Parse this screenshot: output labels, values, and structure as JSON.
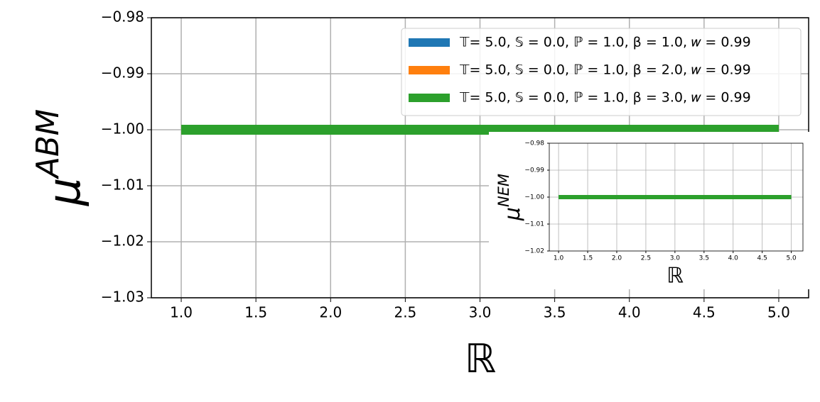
{
  "chart_data": [
    {
      "type": "line",
      "x_label": "ℝ",
      "y_label": "μ",
      "y_label_sup": "ABM",
      "x": [
        1,
        2,
        3,
        4,
        5
      ],
      "series": [
        {
          "name": "𝕋= 5.0, 𝕊 = 0.0, ℙ = 1.0, β = 1.0, 𝑤 = 0.99",
          "color": "#1f77b4",
          "values": [
            -1,
            -1,
            -1,
            -1,
            -1
          ]
        },
        {
          "name": "𝕋= 5.0, 𝕊 = 0.0, ℙ = 1.0, β = 2.0, 𝑤 = 0.99",
          "color": "#ff7f0e",
          "values": [
            -1,
            -1,
            -1,
            -1,
            -1
          ]
        },
        {
          "name": "𝕋= 5.0, 𝕊 = 0.0, ℙ = 1.0, β = 3.0, 𝑤 = 0.99",
          "color": "#2ca02c",
          "values": [
            -1,
            -1,
            -1,
            -1,
            -1
          ]
        }
      ],
      "xlim": [
        0.8,
        5.2
      ],
      "xticks": [
        {
          "value": 1,
          "label": "1.0"
        },
        1.5,
        {
          "value": 2,
          "label": "2.0"
        },
        2.5,
        {
          "value": 3,
          "label": "3.0"
        },
        3.5,
        {
          "value": 4,
          "label": "4.0"
        },
        4.5,
        {
          "value": 5,
          "label": "5.0"
        }
      ],
      "ylim": [
        -1.03,
        -0.98
      ],
      "yticks": [
        {
          "value": -1.03,
          "label": "−1.03"
        },
        {
          "value": -1.02,
          "label": "−1.02"
        },
        {
          "value": -1.01,
          "label": "−1.01"
        },
        {
          "value": -1.0,
          "label": "−1.00"
        },
        {
          "value": -0.99,
          "label": "−0.99"
        },
        {
          "value": -0.98,
          "label": "−0.98"
        }
      ],
      "grid": true,
      "legend": "upper right"
    },
    {
      "type": "line",
      "x_label": "ℝ",
      "y_label": "μ",
      "y_label_sup": "NEM",
      "x": [
        1,
        2,
        3,
        4,
        5
      ],
      "series": [
        {
          "color": "#2ca02c",
          "values": [
            -1,
            -1,
            -1,
            -1,
            -1
          ]
        }
      ],
      "xlim": [
        0.84,
        5.2
      ],
      "xticks": [
        {
          "value": 1,
          "label": "1.0"
        },
        1.5,
        {
          "value": 2,
          "label": "2.0"
        },
        2.5,
        {
          "value": 3,
          "label": "3.0"
        },
        3.5,
        {
          "value": 4,
          "label": "4.0"
        },
        4.5,
        {
          "value": 5,
          "label": "5.0"
        }
      ],
      "ylim": [
        -1.02,
        -0.98
      ],
      "yticks": [
        {
          "value": -1.02,
          "label": "−1.02"
        },
        {
          "value": -1.01,
          "label": "−1.01"
        },
        {
          "value": -1.0,
          "label": "−1.00"
        },
        {
          "value": -0.99,
          "label": "−0.99"
        },
        {
          "value": -0.98,
          "label": "−0.98"
        }
      ],
      "grid": true
    }
  ]
}
